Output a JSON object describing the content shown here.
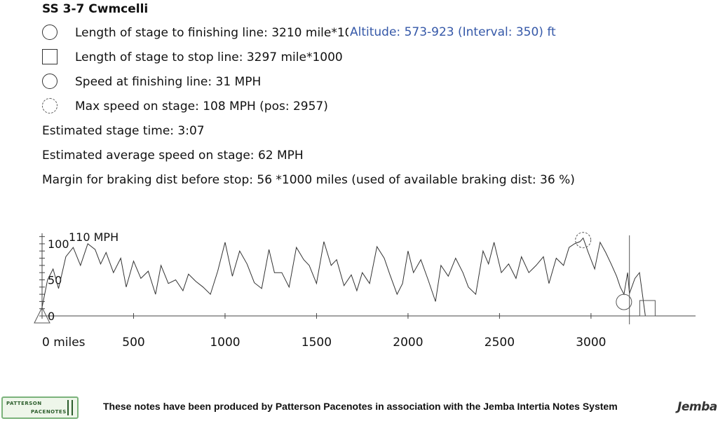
{
  "title": "SS 3-7 Cwmcelli",
  "legend": {
    "finish_length": "Length of stage to finishing line: 3210 mile*1000",
    "stop_length": "Length of stage to stop line: 3297 mile*1000",
    "finish_speed": "Speed at finishing line: 31 MPH",
    "max_speed": "Max speed on stage: 108 MPH (pos: 2957)"
  },
  "altitude": "Altitude: 573-923 (Interval: 350) ft",
  "stats": {
    "stage_time": "Estimated stage time: 3:07",
    "avg_speed": "Estimated average speed on stage: 62 MPH",
    "margin": "Margin for braking dist before stop: 56 *1000 miles (used of available braking dist: 36 %)"
  },
  "chart_data": {
    "type": "line",
    "series_label": "110 MPH",
    "x_tick_labels": [
      "0 miles",
      "500",
      "1000",
      "1500",
      "2000",
      "2500",
      "3000"
    ],
    "x_ticks": [
      0,
      500,
      1000,
      1500,
      2000,
      2500,
      3000
    ],
    "y_tick_labels": [
      "0",
      "50",
      "100"
    ],
    "y_ticks": [
      0,
      50,
      100
    ],
    "xlim": [
      0,
      3500
    ],
    "ylim": [
      0,
      110
    ],
    "finish_line": 3210,
    "stop_line": 3297,
    "max_speed_pos": 2957,
    "max_speed": 108,
    "finish_speed": 31,
    "x": [
      0,
      30,
      60,
      90,
      130,
      170,
      210,
      250,
      290,
      320,
      350,
      390,
      430,
      460,
      500,
      540,
      580,
      620,
      650,
      690,
      730,
      770,
      800,
      840,
      880,
      920,
      960,
      1000,
      1040,
      1080,
      1120,
      1160,
      1200,
      1240,
      1270,
      1310,
      1350,
      1390,
      1430,
      1460,
      1500,
      1540,
      1580,
      1610,
      1650,
      1690,
      1720,
      1750,
      1790,
      1830,
      1870,
      1900,
      1940,
      1970,
      2000,
      2030,
      2070,
      2110,
      2150,
      2180,
      2220,
      2260,
      2300,
      2330,
      2370,
      2410,
      2440,
      2470,
      2510,
      2550,
      2590,
      2620,
      2660,
      2700,
      2740,
      2770,
      2810,
      2850,
      2880,
      2910,
      2940,
      2957,
      2985,
      3020,
      3050,
      3080,
      3110,
      3140,
      3160,
      3180,
      3200,
      3210
    ],
    "y": [
      12,
      50,
      65,
      38,
      82,
      95,
      70,
      100,
      92,
      72,
      88,
      60,
      80,
      40,
      76,
      52,
      62,
      30,
      70,
      45,
      50,
      35,
      58,
      48,
      40,
      30,
      62,
      102,
      55,
      90,
      72,
      46,
      38,
      92,
      60,
      60,
      40,
      95,
      78,
      70,
      45,
      103,
      70,
      78,
      42,
      57,
      35,
      60,
      45,
      96,
      80,
      58,
      30,
      45,
      90,
      60,
      78,
      50,
      20,
      70,
      55,
      80,
      60,
      40,
      30,
      90,
      72,
      102,
      60,
      72,
      52,
      82,
      60,
      70,
      82,
      45,
      80,
      70,
      95,
      100,
      103,
      108,
      88,
      65,
      102,
      88,
      72,
      55,
      40,
      30,
      60,
      31
    ]
  }
}
